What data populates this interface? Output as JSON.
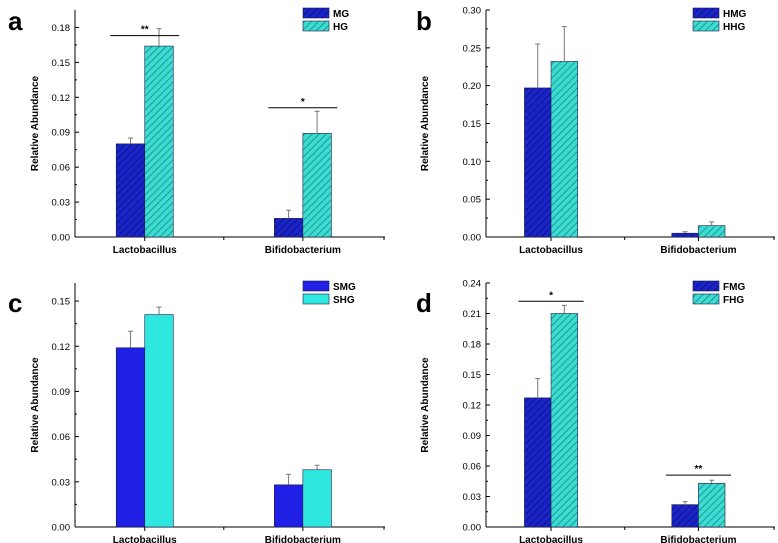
{
  "chart_data": [
    {
      "panel": "a",
      "type": "bar",
      "title": "",
      "xlabel": "",
      "ylabel": "Relative Abundance",
      "categories": [
        "Lactobacillus",
        "Bifidobacterium"
      ],
      "ylim": [
        0,
        0.195
      ],
      "yticks": [
        0.0,
        0.03,
        0.06,
        0.09,
        0.12,
        0.15,
        0.18
      ],
      "ytick_labels": [
        "0.00",
        "0.03",
        "0.06",
        "0.09",
        "0.12",
        "0.15",
        "0.18"
      ],
      "legend_position": "top-right",
      "series": [
        {
          "name": "MG",
          "values": [
            0.08,
            0.016
          ],
          "errors": [
            0.005,
            0.007
          ],
          "color": "#1a24c8",
          "pattern": "diag"
        },
        {
          "name": "HG",
          "values": [
            0.164,
            0.089
          ],
          "errors": [
            0.015,
            0.019
          ],
          "color": "#3cdcd2",
          "pattern": "diag"
        }
      ],
      "significance": [
        {
          "category": 0,
          "label": "**",
          "y": 0.173
        },
        {
          "category": 1,
          "label": "*",
          "y": 0.111
        }
      ]
    },
    {
      "panel": "b",
      "type": "bar",
      "title": "",
      "xlabel": "",
      "ylabel": "Relative Abundance",
      "categories": [
        "Lactobacillus",
        "Bifidobacterium"
      ],
      "ylim": [
        0,
        0.3
      ],
      "yticks": [
        0.0,
        0.05,
        0.1,
        0.15,
        0.2,
        0.25,
        0.3
      ],
      "ytick_labels": [
        "0.00",
        "0.05",
        "0.10",
        "0.15",
        "0.20",
        "0.25",
        "0.30"
      ],
      "legend_position": "top-right",
      "series": [
        {
          "name": "HMG",
          "values": [
            0.197,
            0.005
          ],
          "errors": [
            0.058,
            0.002
          ],
          "color": "#1a24c8",
          "pattern": "diag"
        },
        {
          "name": "HHG",
          "values": [
            0.232,
            0.015
          ],
          "errors": [
            0.046,
            0.005
          ],
          "color": "#3cdcd2",
          "pattern": "diag"
        }
      ],
      "significance": []
    },
    {
      "panel": "c",
      "type": "bar",
      "title": "",
      "xlabel": "",
      "ylabel": "Relative Abundance",
      "categories": [
        "Lactobacillus",
        "Bifidobacterium"
      ],
      "ylim": [
        0,
        0.162
      ],
      "yticks": [
        0.0,
        0.03,
        0.06,
        0.09,
        0.12,
        0.15
      ],
      "ytick_labels": [
        "0.00",
        "0.03",
        "0.06",
        "0.09",
        "0.12",
        "0.15"
      ],
      "legend_position": "top-right",
      "series": [
        {
          "name": "SMG",
          "values": [
            0.119,
            0.028
          ],
          "errors": [
            0.011,
            0.007
          ],
          "color": "#1f1fe6",
          "pattern": "solid"
        },
        {
          "name": "SHG",
          "values": [
            0.141,
            0.038
          ],
          "errors": [
            0.005,
            0.003
          ],
          "color": "#2ee8e0",
          "pattern": "solid"
        }
      ],
      "significance": []
    },
    {
      "panel": "d",
      "type": "bar",
      "title": "",
      "xlabel": "",
      "ylabel": "Relative Abundance",
      "categories": [
        "Lactobacillus",
        "Bifidobacterium"
      ],
      "ylim": [
        0,
        0.24
      ],
      "yticks": [
        0.0,
        0.03,
        0.06,
        0.09,
        0.12,
        0.15,
        0.18,
        0.21,
        0.24
      ],
      "ytick_labels": [
        "0.00",
        "0.03",
        "0.06",
        "0.09",
        "0.12",
        "0.15",
        "0.18",
        "0.21",
        "0.24"
      ],
      "legend_position": "top-right",
      "series": [
        {
          "name": "FMG",
          "values": [
            0.127,
            0.022
          ],
          "errors": [
            0.019,
            0.003
          ],
          "color": "#1a24c8",
          "pattern": "diag"
        },
        {
          "name": "FHG",
          "values": [
            0.21,
            0.043
          ],
          "errors": [
            0.008,
            0.003
          ],
          "color": "#3cdcd2",
          "pattern": "diag"
        }
      ],
      "significance": [
        {
          "category": 0,
          "label": "*",
          "y": 0.222
        },
        {
          "category": 1,
          "label": "**",
          "y": 0.051
        }
      ]
    }
  ]
}
